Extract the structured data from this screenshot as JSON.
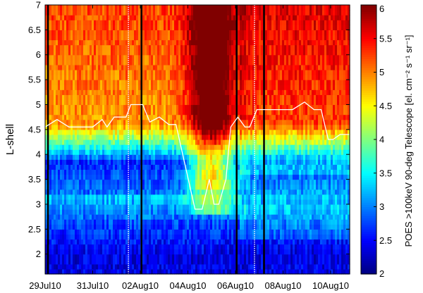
{
  "chart_data": {
    "type": "heatmap",
    "title": "",
    "xlabel": "",
    "ylabel": "L-shell",
    "x_ticks": [
      "29Jul10",
      "31Jul10",
      "02Aug10",
      "04Aug10",
      "06Aug10",
      "08Aug10",
      "10Aug10"
    ],
    "x_tick_days": [
      0,
      2,
      4,
      6,
      8,
      10,
      12
    ],
    "xlim_days": [
      0,
      12.8
    ],
    "y_ticks": [
      "2",
      "2.5",
      "3",
      "3.5",
      "4",
      "4.5",
      "5",
      "5.5",
      "6",
      "6.5",
      "7"
    ],
    "ylim": [
      1.6,
      7
    ],
    "colorbar": {
      "label": "POES >100keV 90-deg Telescope [el. cm⁻² s⁻¹ sr⁻¹]",
      "ticks": [
        "2",
        "2.5",
        "3",
        "3.5",
        "4",
        "4.5",
        "5",
        "5.5",
        "6"
      ],
      "range": [
        2,
        6
      ],
      "colormap": "jet"
    },
    "vertical_lines": {
      "solid_black_days": [
        0.12,
        4.05,
        8.05
      ],
      "dotted_white_days": [
        3.5,
        8.8
      ],
      "thick_black_days": [
        9.2
      ]
    },
    "plasmapause_line": {
      "color": "#ffffff",
      "days": [
        0,
        0.5,
        1.0,
        1.5,
        2.0,
        2.4,
        2.6,
        2.9,
        3.4,
        3.6,
        4.1,
        4.4,
        4.8,
        5.2,
        5.5,
        6.3,
        6.6,
        6.9,
        7.1,
        7.3,
        7.6,
        7.8,
        8.1,
        8.4,
        8.6,
        8.9,
        9.4,
        10.4,
        10.9,
        11.3,
        11.6,
        11.9,
        12.1,
        12.4,
        12.8
      ],
      "L": [
        4.55,
        4.7,
        4.55,
        4.55,
        4.55,
        4.7,
        4.55,
        4.75,
        4.75,
        5.0,
        5.0,
        4.65,
        4.75,
        4.6,
        4.6,
        2.9,
        2.9,
        3.5,
        3.0,
        3.0,
        3.5,
        4.55,
        4.75,
        4.55,
        4.55,
        4.9,
        4.9,
        4.9,
        5.05,
        4.9,
        4.9,
        4.3,
        4.3,
        4.4,
        4.4
      ]
    },
    "description_of_field": "Electron flux (log10) as function of time and L-shell; low flux (blue, ~2-3.5) inside L~4, high flux (orange/red, ~5-6) above L~4.5, strong enhancement to ~6 on 04-06Aug10."
  }
}
